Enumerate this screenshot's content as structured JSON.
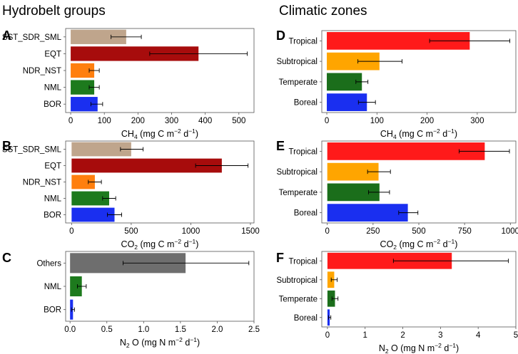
{
  "section_titles": {
    "left": "Hydrobelt groups",
    "right": "Climatic zones"
  },
  "colors": {
    "SST_SDR_SML": "#bfa58c",
    "EQT": "#a70c0c",
    "NDR_NST": "#ff7f0e",
    "NML": "#1d7a1d",
    "BOR": "#1a2ff0",
    "Others": "#6e6e6e",
    "Tropical": "#ff1a1a",
    "Subtropical": "#ffa500",
    "Temperate": "#1b6e1b",
    "Boreal": "#1a2ff0"
  },
  "chart_data": [
    {
      "id": "A",
      "panel_label": "A",
      "type": "bar",
      "orientation": "horizontal",
      "categories": [
        "SST_SDR_SML",
        "EQT",
        "NDR_NST",
        "NML",
        "BOR"
      ],
      "values": [
        165,
        380,
        70,
        70,
        80
      ],
      "errors": [
        [
          120,
          210
        ],
        [
          235,
          525
        ],
        [
          55,
          85
        ],
        [
          55,
          85
        ],
        [
          60,
          95
        ]
      ],
      "xlim": [
        -15,
        545
      ],
      "xticks": [
        0,
        100,
        200,
        300,
        400,
        500
      ],
      "xlabel": {
        "pre": "CH",
        "sub": "4",
        "mid": " (mg C m",
        "sup1": "−2",
        "mid2": " d",
        "sup2": "−1",
        "post": ")"
      }
    },
    {
      "id": "B",
      "panel_label": "B",
      "type": "bar",
      "orientation": "horizontal",
      "categories": [
        "SST_SDR_SML",
        "EQT",
        "NDR_NST",
        "NML",
        "BOR"
      ],
      "values": [
        500,
        1260,
        195,
        315,
        360
      ],
      "errors": [
        [
          410,
          600
        ],
        [
          1040,
          1480
        ],
        [
          140,
          250
        ],
        [
          260,
          370
        ],
        [
          300,
          420
        ]
      ],
      "xlim": [
        -50,
        1530
      ],
      "xticks": [
        0,
        500,
        1000,
        1500
      ],
      "xlabel": {
        "pre": "CO",
        "sub": "2",
        "mid": " (mg C m",
        "sup1": "−2",
        "mid2": " d",
        "sup2": "−1",
        "post": ")"
      }
    },
    {
      "id": "C",
      "panel_label": "C",
      "type": "bar",
      "orientation": "horizontal",
      "categories": [
        "Others",
        "NML",
        "BOR"
      ],
      "values": [
        1.57,
        0.16,
        0.04
      ],
      "errors": [
        [
          0.72,
          2.43
        ],
        [
          0.1,
          0.22
        ],
        [
          0.02,
          0.06
        ]
      ],
      "xlim": [
        -0.06,
        2.5
      ],
      "xticks": [
        0.0,
        0.5,
        1.0,
        1.5,
        2.0,
        2.5
      ],
      "xtick_labels": [
        "0.0",
        "0.5",
        "1.0",
        "1.5",
        "2.0",
        "2.5"
      ],
      "xlabel": {
        "pre": "N",
        "sub": "2",
        "mid": " O (mg N m",
        "sup1": "−2",
        "mid2": " d",
        "sup2": "−1",
        "post": ")"
      }
    },
    {
      "id": "D",
      "panel_label": "D",
      "type": "bar",
      "orientation": "horizontal",
      "categories": [
        "Tropical",
        "Subtropical",
        "Temperate",
        "Boreal"
      ],
      "values": [
        285,
        105,
        70,
        80
      ],
      "errors": [
        [
          205,
          365
        ],
        [
          62,
          150
        ],
        [
          58,
          82
        ],
        [
          63,
          97
        ]
      ],
      "xlim": [
        -10,
        377
      ],
      "xticks": [
        0,
        100,
        200,
        300
      ],
      "xlabel": {
        "pre": "CH",
        "sub": "4",
        "mid": " (mg C m",
        "sup1": "−2",
        "mid2": " d",
        "sup2": "−1",
        "post": ")"
      }
    },
    {
      "id": "E",
      "panel_label": "E",
      "type": "bar",
      "orientation": "horizontal",
      "categories": [
        "Tropical",
        "Subtropical",
        "Temperate",
        "Boreal"
      ],
      "values": [
        860,
        280,
        285,
        440
      ],
      "errors": [
        [
          720,
          995
        ],
        [
          220,
          345
        ],
        [
          225,
          340
        ],
        [
          390,
          495
        ]
      ],
      "xlim": [
        -30,
        1030
      ],
      "xticks": [
        0,
        250,
        500,
        750,
        1000
      ],
      "xlabel": {
        "pre": "CO",
        "sub": "2",
        "mid": " (mg C m",
        "sup1": "−2",
        "mid2": " d",
        "sup2": "−1",
        "post": ")"
      }
    },
    {
      "id": "F",
      "panel_label": "F",
      "type": "bar",
      "orientation": "horizontal",
      "categories": [
        "Tropical",
        "Subtropical",
        "Temperate",
        "Boreal"
      ],
      "values": [
        3.3,
        0.18,
        0.2,
        0.06
      ],
      "errors": [
        [
          1.75,
          4.8
        ],
        [
          0.1,
          0.26
        ],
        [
          0.12,
          0.28
        ],
        [
          0.03,
          0.09
        ]
      ],
      "xlim": [
        -0.15,
        5.0
      ],
      "xticks": [
        0,
        1,
        2,
        3,
        4,
        5
      ],
      "xlabel": {
        "pre": "N",
        "sub": "2",
        "mid": " O (mg N m",
        "sup1": "−2",
        "mid2": " d",
        "sup2": "−1",
        "post": ")"
      }
    }
  ]
}
